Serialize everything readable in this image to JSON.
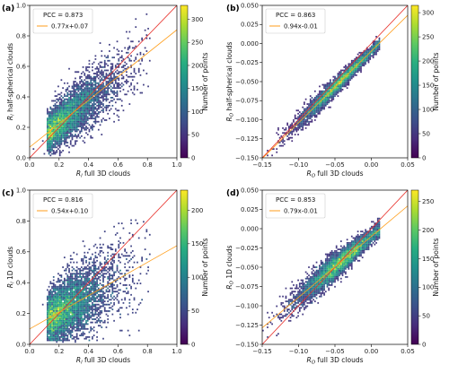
{
  "chart_data": [
    {
      "type": "scatter",
      "panel_label": "(a)",
      "title": "",
      "xlabel": "R_l full 3D clouds",
      "ylabel": "R_l half-spherical clouds",
      "xlim": [
        0,
        1
      ],
      "ylim": [
        0,
        1
      ],
      "xticks": [
        "0.0",
        "0.2",
        "0.4",
        "0.6",
        "0.8",
        "1.0"
      ],
      "yticks": [
        "0.0",
        "0.2",
        "0.4",
        "0.6",
        "0.8",
        "1.0"
      ],
      "stats": {
        "pcc": 0.873,
        "slope": 0.77,
        "intercept": 0.07
      },
      "legend_text": [
        "PCC = 0.873",
        "0.77x+0.07"
      ],
      "legend_position": "top-left",
      "fit_color": "#ff9e1b",
      "identity_color": "#e8312b",
      "colorbar": {
        "label": "Number of points",
        "max": 330,
        "ticks": [
          "0",
          "50",
          "100",
          "150",
          "200",
          "250",
          "300"
        ]
      }
    },
    {
      "type": "scatter",
      "panel_label": "(b)",
      "title": "",
      "xlabel": "R_O full 3D clouds",
      "ylabel": "R_O half-spherical clouds",
      "xlim": [
        -0.15,
        0.05
      ],
      "ylim": [
        -0.15,
        0.05
      ],
      "xticks": [
        "−0.15",
        "−0.10",
        "−0.05",
        "0.00",
        "0.05"
      ],
      "yticks": [
        "−0.150",
        "−0.125",
        "−0.100",
        "−0.075",
        "−0.050",
        "−0.025",
        "0.000",
        "0.025",
        "0.050"
      ],
      "stats": {
        "pcc": 0.863,
        "slope": 0.94,
        "intercept": -0.01
      },
      "legend_text": [
        "PCC = 0.863",
        "0.94x-0.01"
      ],
      "legend_position": "top-left",
      "fit_color": "#ff9e1b",
      "identity_color": "#e8312b",
      "colorbar": {
        "label": "Number of points",
        "max": 315,
        "ticks": [
          "0",
          "50",
          "100",
          "150",
          "200",
          "250",
          "300"
        ]
      }
    },
    {
      "type": "scatter",
      "panel_label": "(c)",
      "title": "",
      "xlabel": "R_l full 3D clouds",
      "ylabel": "R_l 1D clouds",
      "xlim": [
        0,
        1
      ],
      "ylim": [
        0,
        1
      ],
      "xticks": [
        "0.0",
        "0.2",
        "0.4",
        "0.6",
        "0.8",
        "1.0"
      ],
      "yticks": [
        "0.0",
        "0.2",
        "0.4",
        "0.6",
        "0.8",
        "1.0"
      ],
      "stats": {
        "pcc": 0.816,
        "slope": 0.54,
        "intercept": 0.1
      },
      "legend_text": [
        "PCC = 0.816",
        "0.54x+0.10"
      ],
      "legend_position": "top-left",
      "fit_color": "#ff9e1b",
      "identity_color": "#e8312b",
      "colorbar": {
        "label": "Number of points",
        "max": 230,
        "ticks": [
          "0",
          "50",
          "100",
          "150",
          "200"
        ]
      }
    },
    {
      "type": "scatter",
      "panel_label": "(d)",
      "title": "",
      "xlabel": "R_O full 3D clouds",
      "ylabel": "R_O 1D clouds",
      "xlim": [
        -0.15,
        0.05
      ],
      "ylim": [
        -0.15,
        0.05
      ],
      "xticks": [
        "−0.15",
        "−0.10",
        "−0.05",
        "0.00",
        "0.05"
      ],
      "yticks": [
        "−0.150",
        "−0.125",
        "−0.100",
        "−0.075",
        "−0.050",
        "−0.025",
        "0.000",
        "0.025",
        "0.050"
      ],
      "stats": {
        "pcc": 0.853,
        "slope": 0.79,
        "intercept": -0.01
      },
      "legend_text": [
        "PCC = 0.853",
        "0.79x-0.01"
      ],
      "legend_position": "top-left",
      "fit_color": "#ff9e1b",
      "identity_color": "#e8312b",
      "colorbar": {
        "label": "Number of points",
        "max": 270,
        "ticks": [
          "0",
          "50",
          "100",
          "150",
          "200",
          "250"
        ]
      }
    }
  ]
}
